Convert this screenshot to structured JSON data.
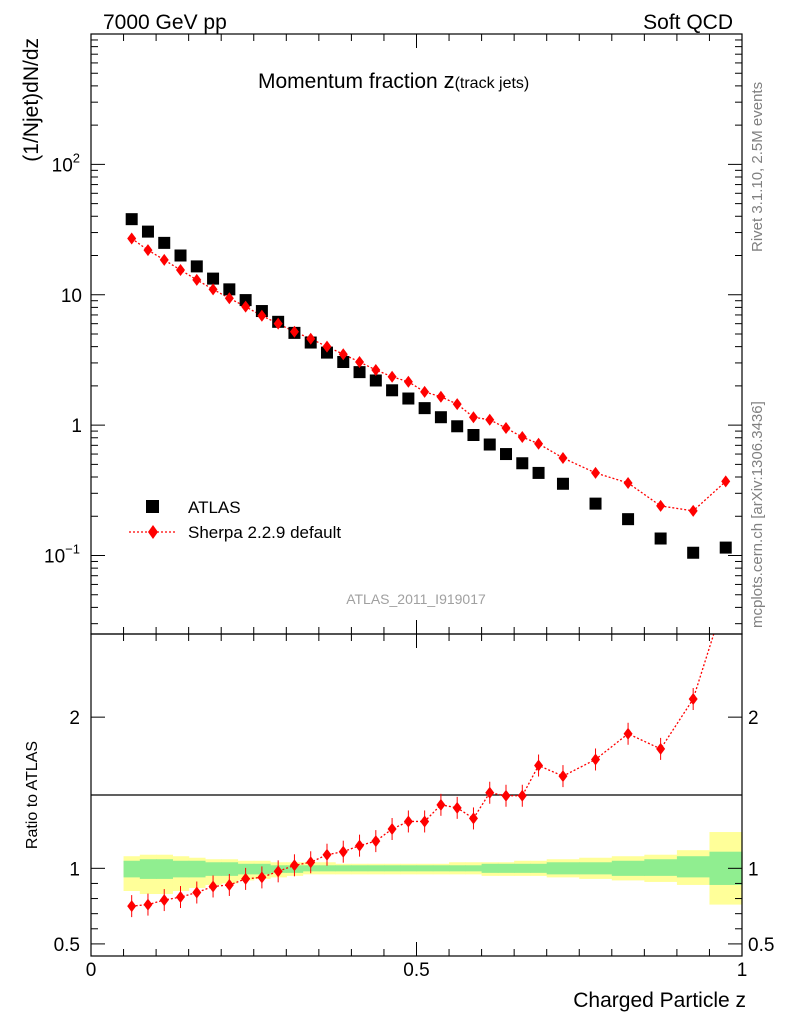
{
  "header": {
    "left": "7000 GeV pp",
    "right": "Soft QCD"
  },
  "title": {
    "main": "Momentum fraction ",
    "z": "z",
    "sub": "(track jets)"
  },
  "side_text": {
    "rivet": "Rivet 3.1.10,  2.5M events",
    "mcplots": "mcplots.cern.ch [arXiv:1306.3436]"
  },
  "watermark": "ATLAS_2011_I919017",
  "legend": {
    "atlas": "ATLAS",
    "sherpa": "Sherpa 2.2.9 default"
  },
  "colors": {
    "atlas": "#000000",
    "sherpa": "#ff0000",
    "band_inner": "#90ee90",
    "band_outer": "#ffff99"
  },
  "chart_data": [
    {
      "type": "scatter",
      "panel": "main",
      "ylabel": "(1/Njet)dN/dz",
      "yscale": "log",
      "ylim": [
        0.025,
        1000
      ],
      "xlim": [
        0,
        1
      ],
      "yticks": [
        {
          "v": 100,
          "base": "10",
          "exp": "2"
        },
        {
          "v": 10,
          "base": "10",
          "exp": ""
        },
        {
          "v": 1,
          "base": "1",
          "exp": ""
        },
        {
          "v": 0.1,
          "base": "10",
          "exp": "−1"
        }
      ],
      "x": [
        0.0625,
        0.0875,
        0.1125,
        0.1375,
        0.1625,
        0.1875,
        0.2125,
        0.2375,
        0.2625,
        0.2875,
        0.3125,
        0.3375,
        0.3625,
        0.3875,
        0.4125,
        0.4375,
        0.4625,
        0.4875,
        0.5125,
        0.5375,
        0.5625,
        0.5875,
        0.6125,
        0.6375,
        0.6625,
        0.6875,
        0.725,
        0.775,
        0.825,
        0.875,
        0.925,
        0.975
      ],
      "series": [
        {
          "name": "ATLAS",
          "values": [
            38,
            30.5,
            25,
            20,
            16.5,
            13.3,
            11,
            9.1,
            7.5,
            6.2,
            5.1,
            4.3,
            3.6,
            3.05,
            2.55,
            2.2,
            1.85,
            1.6,
            1.35,
            1.15,
            0.98,
            0.84,
            0.71,
            0.6,
            0.51,
            0.43,
            0.355,
            0.25,
            0.19,
            0.135,
            0.105,
            0.115
          ]
        },
        {
          "name": "Sherpa 2.2.9 default",
          "values": [
            27,
            22,
            18.5,
            15.5,
            13,
            11,
            9.4,
            8.1,
            6.9,
            6,
            5.2,
            4.6,
            4,
            3.5,
            3.05,
            2.65,
            2.35,
            2.15,
            1.8,
            1.65,
            1.45,
            1.15,
            1.1,
            0.95,
            0.81,
            0.72,
            0.56,
            0.43,
            0.36,
            0.24,
            0.22,
            0.37
          ]
        }
      ]
    },
    {
      "type": "line",
      "panel": "ratio",
      "xlabel": "Charged Particle z",
      "ylabel": "Ratio to ATLAS",
      "ylim": [
        0.42,
        2.55
      ],
      "xlim": [
        0,
        1
      ],
      "yticks": [
        {
          "v": 0.5,
          "label": "0.5"
        },
        {
          "v": 1,
          "label": "1"
        },
        {
          "v": 2,
          "label": "2"
        }
      ],
      "xticks": [
        {
          "v": 0,
          "label": "0"
        },
        {
          "v": 0.5,
          "label": "0.5"
        },
        {
          "v": 1,
          "label": "1"
        }
      ],
      "x": [
        0.0625,
        0.0875,
        0.1125,
        0.1375,
        0.1625,
        0.1875,
        0.2125,
        0.2375,
        0.2625,
        0.2875,
        0.3125,
        0.3375,
        0.3625,
        0.3875,
        0.4125,
        0.4375,
        0.4625,
        0.4875,
        0.5125,
        0.5375,
        0.5625,
        0.5875,
        0.6125,
        0.6375,
        0.6625,
        0.6875,
        0.725,
        0.775,
        0.825,
        0.875,
        0.925,
        0.975
      ],
      "series": [
        {
          "name": "Sherpa 2.2.9 default",
          "values": [
            0.75,
            0.76,
            0.79,
            0.81,
            0.84,
            0.88,
            0.89,
            0.93,
            0.94,
            0.98,
            1.02,
            1.04,
            1.09,
            1.11,
            1.15,
            1.18,
            1.26,
            1.31,
            1.31,
            1.42,
            1.4,
            1.33,
            1.5,
            1.48,
            1.48,
            1.68,
            1.61,
            1.72,
            1.89,
            1.79,
            2.12,
            2.8
          ]
        }
      ],
      "bands": {
        "edges": [
          0.05,
          0.075,
          0.1,
          0.125,
          0.15,
          0.175,
          0.2,
          0.225,
          0.25,
          0.275,
          0.3,
          0.325,
          0.35,
          0.375,
          0.4,
          0.425,
          0.45,
          0.475,
          0.5,
          0.525,
          0.55,
          0.575,
          0.6,
          0.625,
          0.65,
          0.675,
          0.7,
          0.75,
          0.8,
          0.85,
          0.9,
          0.95,
          1.0
        ],
        "inner": {
          "lo": [
            0.94,
            0.93,
            0.93,
            0.94,
            0.94,
            0.95,
            0.95,
            0.96,
            0.96,
            0.97,
            0.97,
            0.98,
            0.98,
            0.98,
            0.98,
            0.98,
            0.98,
            0.98,
            0.98,
            0.98,
            0.98,
            0.98,
            0.97,
            0.97,
            0.97,
            0.97,
            0.96,
            0.96,
            0.95,
            0.95,
            0.94,
            0.89
          ],
          "hi": [
            1.05,
            1.06,
            1.06,
            1.05,
            1.05,
            1.04,
            1.04,
            1.03,
            1.03,
            1.02,
            1.02,
            1.02,
            1.02,
            1.02,
            1.02,
            1.02,
            1.02,
            1.02,
            1.02,
            1.02,
            1.02,
            1.02,
            1.03,
            1.03,
            1.03,
            1.03,
            1.04,
            1.04,
            1.05,
            1.06,
            1.08,
            1.11
          ]
        },
        "outer": {
          "lo": [
            0.85,
            0.83,
            0.83,
            0.85,
            0.87,
            0.89,
            0.9,
            0.92,
            0.93,
            0.94,
            0.95,
            0.96,
            0.96,
            0.96,
            0.96,
            0.96,
            0.96,
            0.96,
            0.96,
            0.96,
            0.96,
            0.96,
            0.95,
            0.95,
            0.95,
            0.95,
            0.94,
            0.93,
            0.92,
            0.91,
            0.89,
            0.76
          ],
          "hi": [
            1.08,
            1.09,
            1.09,
            1.08,
            1.07,
            1.06,
            1.06,
            1.05,
            1.05,
            1.04,
            1.04,
            1.04,
            1.04,
            1.03,
            1.03,
            1.03,
            1.03,
            1.03,
            1.03,
            1.03,
            1.04,
            1.04,
            1.04,
            1.04,
            1.05,
            1.05,
            1.06,
            1.07,
            1.08,
            1.09,
            1.12,
            1.24
          ]
        }
      }
    }
  ]
}
